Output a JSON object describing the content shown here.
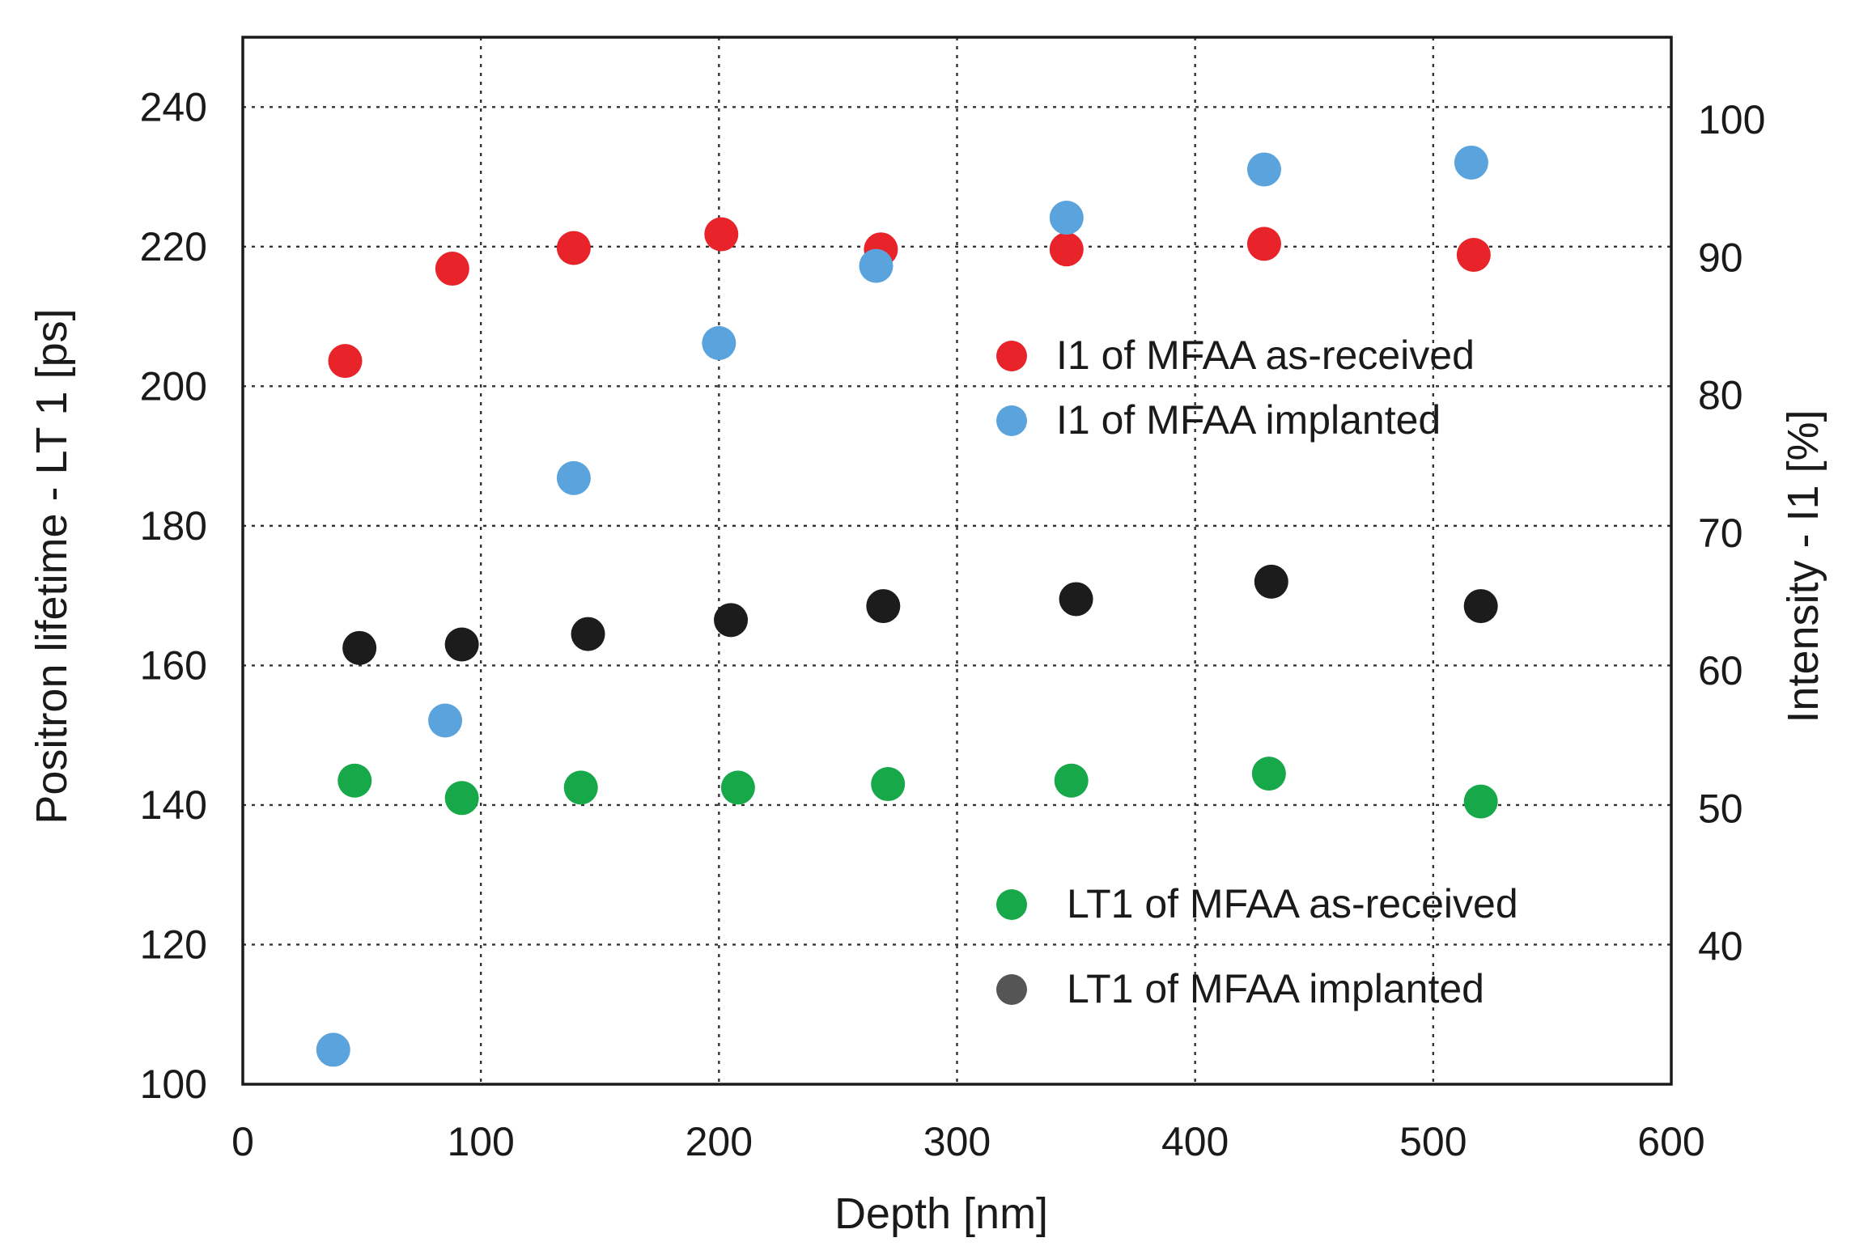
{
  "chart_data": {
    "type": "scatter",
    "xlabel": "Depth [nm]",
    "ylabel": "Positron lifetime - LT 1 [ps]",
    "y2label": "Intensity - I1 [%]",
    "xlim": [
      0,
      600
    ],
    "ylim": [
      100,
      250
    ],
    "y2lim": [
      30,
      106
    ],
    "x_ticks": [
      "0",
      "100",
      "200",
      "300",
      "400",
      "500",
      "600"
    ],
    "x_tick_values": [
      0,
      100,
      200,
      300,
      400,
      500,
      600
    ],
    "y_ticks": [
      "100",
      "120",
      "140",
      "160",
      "180",
      "200",
      "220",
      "240"
    ],
    "y_tick_values": [
      100,
      120,
      140,
      160,
      180,
      200,
      220,
      240
    ],
    "y2_ticks": [
      "40",
      "50",
      "60",
      "70",
      "80",
      "90",
      "100"
    ],
    "y2_tick_values": [
      40,
      50,
      60,
      70,
      80,
      90,
      100
    ],
    "grid": true,
    "series": [
      {
        "name": "I1 of MFAA as-received",
        "axis": "right",
        "color": "#e8232a",
        "x": [
          43,
          88,
          139,
          201,
          268,
          346,
          429,
          517
        ],
        "y": [
          82.5,
          89.2,
          90.7,
          91.7,
          90.6,
          90.6,
          91.0,
          90.2
        ]
      },
      {
        "name": "I1 of MFAA implanted",
        "axis": "right",
        "color": "#5ba3dc",
        "x": [
          38,
          85,
          139,
          200,
          266,
          346,
          429,
          516
        ],
        "y": [
          32.5,
          56.4,
          74.0,
          83.8,
          89.4,
          92.9,
          96.4,
          96.9
        ]
      },
      {
        "name": "LT1 of MFAA as-received",
        "axis": "left",
        "color": "#17a84a",
        "x": [
          47,
          92,
          142,
          208,
          271,
          348,
          431,
          520
        ],
        "y": [
          143.5,
          141,
          142.5,
          142.5,
          143,
          143.5,
          144.5,
          140.5
        ]
      },
      {
        "name": "LT1 of MFAA implanted",
        "axis": "left",
        "color": "#1c1c1c",
        "x": [
          49,
          92,
          145,
          205,
          269,
          350,
          432,
          520
        ],
        "y": [
          162.5,
          163,
          164.5,
          166.5,
          168.5,
          169.5,
          172,
          168.5
        ]
      }
    ],
    "legend": [
      {
        "label": "I1 of MFAA as-received",
        "color": "#e8232a",
        "group": "upper"
      },
      {
        "label": "I1 of MFAA implanted",
        "color": "#5ba3dc",
        "group": "upper"
      },
      {
        "label": "LT1 of MFAA as-received",
        "color": "#17a84a",
        "group": "lower"
      },
      {
        "label": "LT1 of MFAA implanted",
        "color": "#555555",
        "group": "lower"
      }
    ],
    "legend_placement": "inside-right"
  }
}
